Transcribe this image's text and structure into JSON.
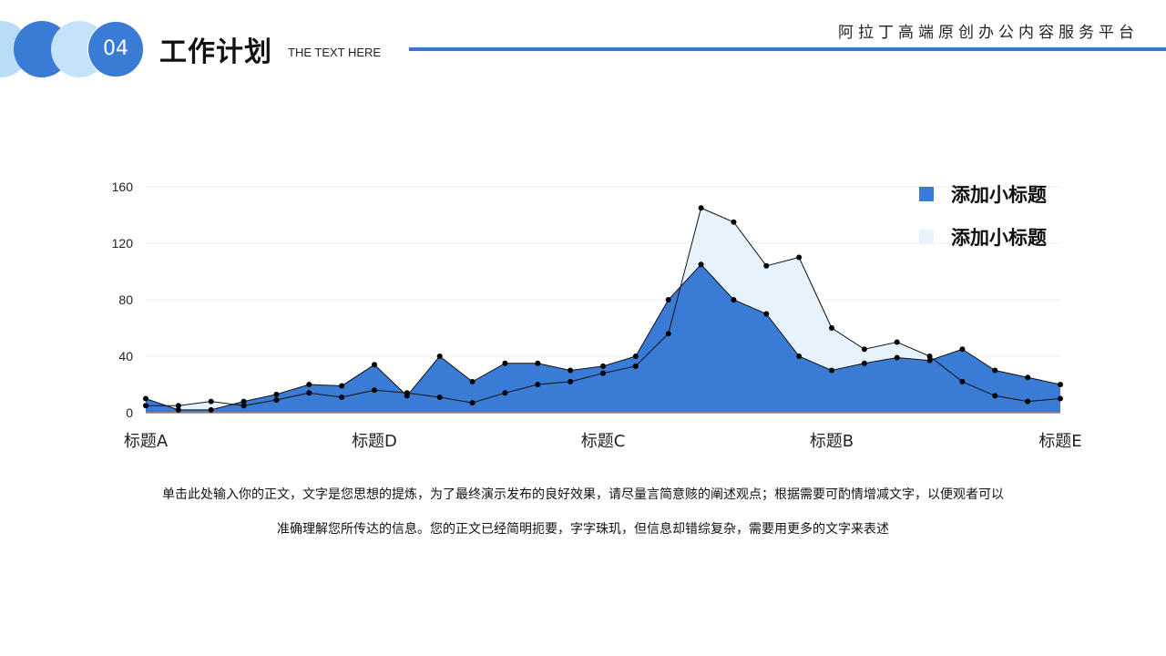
{
  "header": {
    "number": "04",
    "title": "工作计划",
    "subtitle": "THE TEXT HERE",
    "platform": "阿拉丁高端原创办公内容服务平台"
  },
  "colors": {
    "accent": "#3a7bd5",
    "light": "#e6f2fc",
    "circle_light": "#c4e2fa"
  },
  "chart_data": {
    "type": "area",
    "x_tick_labels": [
      "标题A",
      "标题D",
      "标题C",
      "标题B",
      "标题E"
    ],
    "ylim": [
      0,
      160
    ],
    "y_ticks": [
      0,
      40,
      80,
      120,
      160
    ],
    "grid": true,
    "legend_position": "top-right",
    "series": [
      {
        "name": "添加小标题",
        "color": "#3a7bd5",
        "values": [
          10,
          2,
          2,
          8,
          13,
          20,
          19,
          34,
          12,
          40,
          22,
          35,
          35,
          30,
          33,
          40,
          80,
          105,
          80,
          70,
          40,
          30,
          35,
          39,
          37,
          45,
          30,
          25,
          20
        ]
      },
      {
        "name": "添加小标题",
        "color": "#e6f2fc",
        "values": [
          5,
          5,
          8,
          5,
          9,
          14,
          11,
          16,
          14,
          11,
          7,
          14,
          20,
          22,
          28,
          33,
          56,
          145,
          135,
          104,
          110,
          60,
          45,
          50,
          40,
          22,
          12,
          8,
          10
        ]
      }
    ]
  },
  "body": {
    "line1": "单击此处输入你的正文，文字是您思想的提炼，为了最终演示发布的良好效果，请尽量言简意赅的阐述观点；根据需要可酌情增减文字，以便观者可以",
    "line2": "准确理解您所传达的信息。您的正文已经简明扼要，字字珠玑，但信息却错综复杂，需要用更多的文字来表述"
  }
}
